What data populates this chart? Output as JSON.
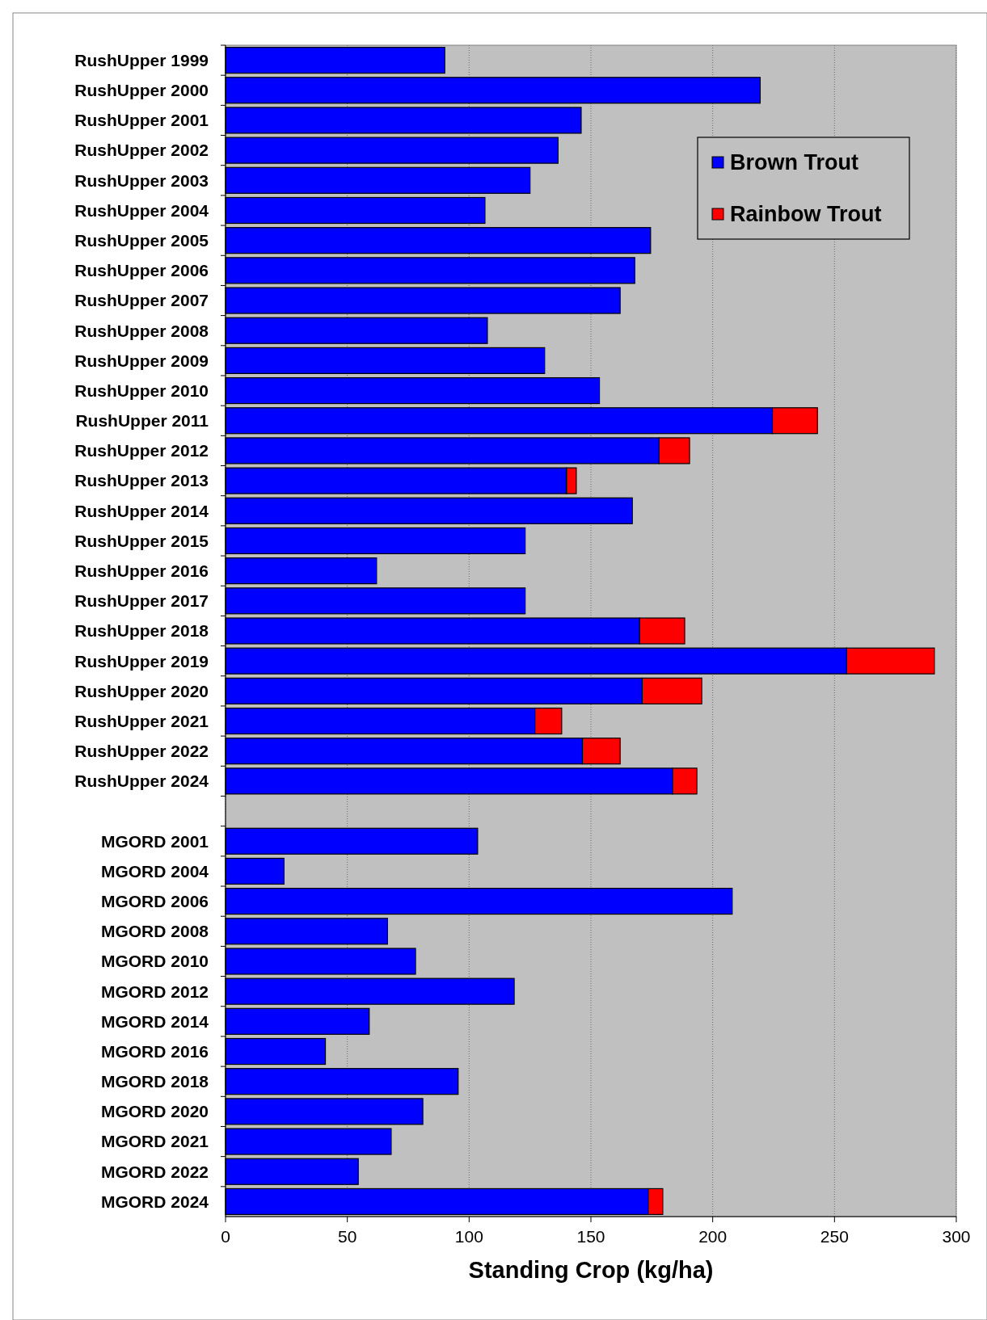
{
  "chart_data": {
    "type": "bar",
    "orientation": "horizontal",
    "stacked": true,
    "xlabel": "Standing Crop (kg/ha)",
    "categories": [
      "RushUpper 1999",
      "RushUpper 2000",
      "RushUpper 2001",
      "RushUpper 2002",
      "RushUpper 2003",
      "RushUpper 2004",
      "RushUpper 2005",
      "RushUpper 2006",
      "RushUpper 2007",
      "RushUpper 2008",
      "RushUpper 2009",
      "RushUpper 2010",
      "RushUpper 2011",
      "RushUpper 2012",
      "RushUpper 2013",
      "RushUpper 2014",
      "RushUpper 2015",
      "RushUpper 2016",
      "RushUpper 2017",
      "RushUpper 2018",
      "RushUpper 2019",
      "RushUpper 2020",
      "RushUpper 2021",
      "RushUpper 2022",
      "RushUpper 2024",
      null,
      "MGORD 2001",
      "MGORD 2004",
      "MGORD 2006",
      "MGORD 2008",
      "MGORD 2010",
      "MGORD 2012",
      "MGORD 2014",
      "MGORD 2016",
      "MGORD 2018",
      "MGORD 2020",
      "MGORD 2021",
      "MGORD 2022",
      "MGORD 2024"
    ],
    "series": [
      {
        "name": "Brown Trout",
        "color": "#0000ff",
        "values": [
          90,
          219.5,
          146,
          136.5,
          125,
          106.5,
          174.5,
          168,
          162,
          107.5,
          131,
          153.5,
          224.5,
          178,
          140,
          167,
          123,
          62,
          123,
          170,
          255,
          171,
          127,
          146.5,
          183.5,
          null,
          103.5,
          24,
          208,
          66.5,
          78,
          118.5,
          59,
          41,
          95.5,
          81,
          68,
          54.5,
          173.5
        ]
      },
      {
        "name": "Rainbow Trout",
        "color": "#ff0000",
        "values": [
          null,
          null,
          null,
          null,
          null,
          null,
          null,
          null,
          null,
          null,
          null,
          null,
          18.5,
          12.5,
          4,
          null,
          null,
          null,
          null,
          18.5,
          36,
          24.5,
          11,
          15.5,
          10,
          null,
          null,
          null,
          null,
          null,
          null,
          null,
          null,
          null,
          null,
          null,
          null,
          null,
          6
        ]
      }
    ],
    "xlim": [
      0,
      300
    ],
    "xticks": [
      0,
      50,
      100,
      150,
      200,
      250,
      300
    ],
    "grid": "x",
    "legend": "top right"
  }
}
